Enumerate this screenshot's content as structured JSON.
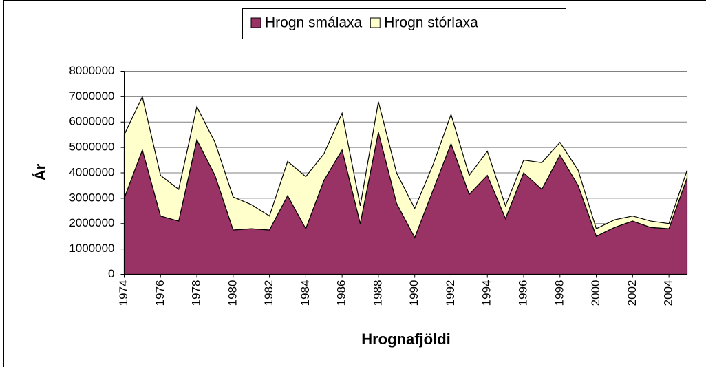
{
  "chart_data": {
    "type": "stacked_area",
    "xlabel": "Hrognafjöldi",
    "ylabel": "Ár",
    "categories": [
      "1974",
      null,
      "1976",
      null,
      "1978",
      null,
      "1980",
      null,
      "1982",
      null,
      "1984",
      null,
      "1986",
      null,
      "1988",
      null,
      "1990",
      null,
      "1992",
      null,
      "1994",
      null,
      "1996",
      null,
      "1998",
      null,
      "2000",
      null,
      "2002",
      null,
      "2004",
      null
    ],
    "series": [
      {
        "name": "Hrogn smálaxa",
        "color": "#993366",
        "values": [
          3000000,
          4900000,
          2300000,
          2100000,
          5300000,
          3900000,
          1750000,
          1800000,
          1750000,
          3100000,
          1800000,
          3700000,
          4900000,
          2000000,
          5600000,
          2800000,
          1450000,
          3300000,
          5150000,
          3150000,
          3900000,
          2200000,
          4000000,
          3350000,
          4700000,
          3500000,
          1500000,
          1850000,
          2100000,
          1850000,
          1800000,
          3800000
        ]
      },
      {
        "name": "Hrogn stórlaxa",
        "color": "#ffffcc",
        "values": [
          2500000,
          2100000,
          1600000,
          1250000,
          1300000,
          1300000,
          1300000,
          950000,
          550000,
          1350000,
          2050000,
          1050000,
          1450000,
          700000,
          1200000,
          1200000,
          1150000,
          1000000,
          1150000,
          750000,
          950000,
          500000,
          500000,
          1050000,
          500000,
          600000,
          300000,
          300000,
          200000,
          250000,
          200000,
          300000
        ]
      }
    ],
    "ylim": [
      0,
      8000000
    ],
    "yticks": [
      0,
      1000000,
      2000000,
      3000000,
      4000000,
      5000000,
      6000000,
      7000000,
      8000000
    ],
    "grid": true,
    "legend": "top"
  }
}
